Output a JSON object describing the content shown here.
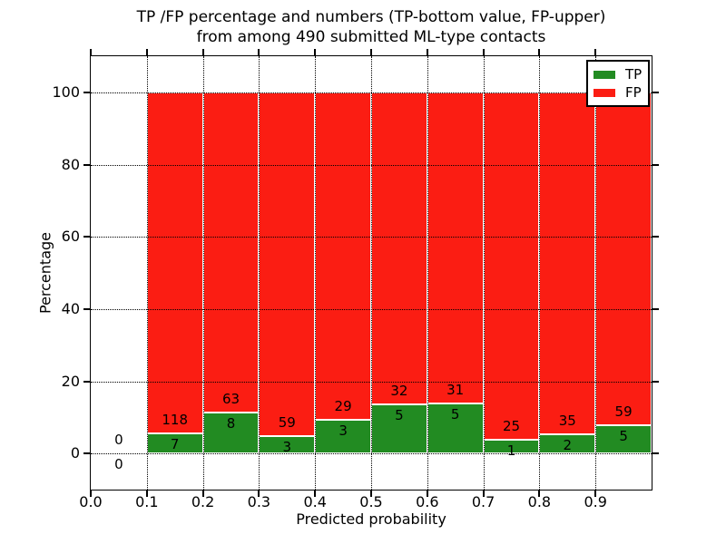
{
  "chart_data": {
    "type": "bar",
    "stacked": true,
    "title_line1": "TP /FP percentage and numbers (TP-bottom value, FP-upper)",
    "title_line2": "from among 490 submitted ML-type contacts",
    "xlabel": "Predicted probability",
    "ylabel": "Percentage",
    "xlim": [
      0.0,
      1.0
    ],
    "ylim": [
      -10,
      110
    ],
    "grid": {
      "style": "dotted",
      "color": "#000000",
      "drawn_over_bars": true
    },
    "x_ticks": [
      {
        "value": 0.0,
        "label": "0.0"
      },
      {
        "value": 0.1,
        "label": "0.1"
      },
      {
        "value": 0.2,
        "label": "0.2"
      },
      {
        "value": 0.3,
        "label": "0.3"
      },
      {
        "value": 0.4,
        "label": "0.4"
      },
      {
        "value": 0.5,
        "label": "0.5"
      },
      {
        "value": 0.6,
        "label": "0.6"
      },
      {
        "value": 0.7,
        "label": "0.7"
      },
      {
        "value": 0.8,
        "label": "0.8"
      },
      {
        "value": 0.9,
        "label": "0.9"
      }
    ],
    "y_ticks": [
      {
        "value": 0,
        "label": "0"
      },
      {
        "value": 20,
        "label": "20"
      },
      {
        "value": 40,
        "label": "40"
      },
      {
        "value": 60,
        "label": "60"
      },
      {
        "value": 80,
        "label": "80"
      },
      {
        "value": 100,
        "label": "100"
      }
    ],
    "bins": [
      {
        "start": 0.0,
        "end": 0.1,
        "tp": 0,
        "fp": 0
      },
      {
        "start": 0.1,
        "end": 0.2,
        "tp": 7,
        "fp": 118
      },
      {
        "start": 0.2,
        "end": 0.3,
        "tp": 8,
        "fp": 63
      },
      {
        "start": 0.3,
        "end": 0.4,
        "tp": 3,
        "fp": 59
      },
      {
        "start": 0.4,
        "end": 0.5,
        "tp": 3,
        "fp": 29
      },
      {
        "start": 0.5,
        "end": 0.6,
        "tp": 5,
        "fp": 32
      },
      {
        "start": 0.6,
        "end": 0.7,
        "tp": 5,
        "fp": 31
      },
      {
        "start": 0.7,
        "end": 0.8,
        "tp": 1,
        "fp": 25
      },
      {
        "start": 0.8,
        "end": 0.9,
        "tp": 2,
        "fp": 35
      },
      {
        "start": 0.9,
        "end": 1.0,
        "tp": 5,
        "fp": 59
      }
    ],
    "total_contacts": 490,
    "colors": {
      "tp": "#228b22",
      "fp": "#fb1d13",
      "bar_edge": "#ffffff",
      "text": "#000000"
    },
    "legend": {
      "position": "upper right",
      "entries": [
        {
          "label": "TP",
          "color_key": "tp"
        },
        {
          "label": "FP",
          "color_key": "fp"
        }
      ]
    }
  }
}
